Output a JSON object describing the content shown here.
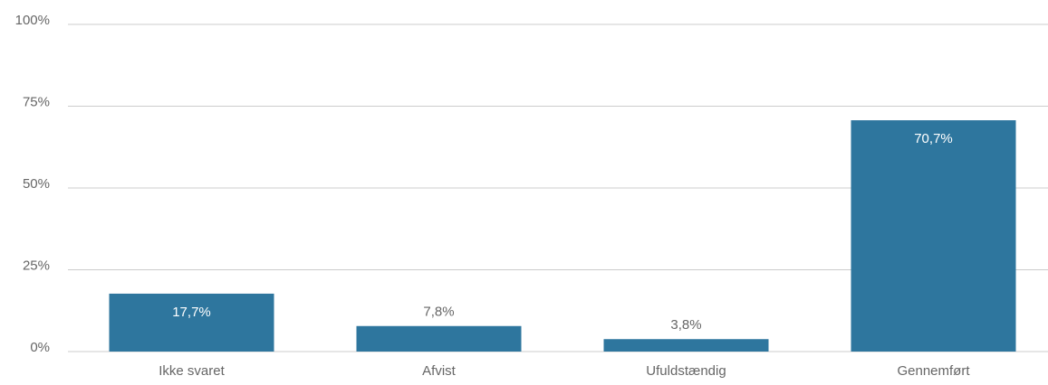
{
  "chart_data": {
    "type": "bar",
    "categories": [
      "Ikke svaret",
      "Afvist",
      "Ufuldstændig",
      "Gennemført"
    ],
    "values": [
      17.7,
      7.8,
      3.8,
      70.7
    ],
    "value_labels": [
      "17,7%",
      "7,8%",
      "3,8%",
      "70,7%"
    ],
    "color": "#2e769e",
    "ylim": [
      0,
      100
    ],
    "yticks": [
      {
        "value": 0,
        "label": "0%"
      },
      {
        "value": 25,
        "label": "25%"
      },
      {
        "value": 50,
        "label": "50%"
      },
      {
        "value": 75,
        "label": "75%"
      },
      {
        "value": 100,
        "label": "100%"
      }
    ],
    "grid": true
  }
}
